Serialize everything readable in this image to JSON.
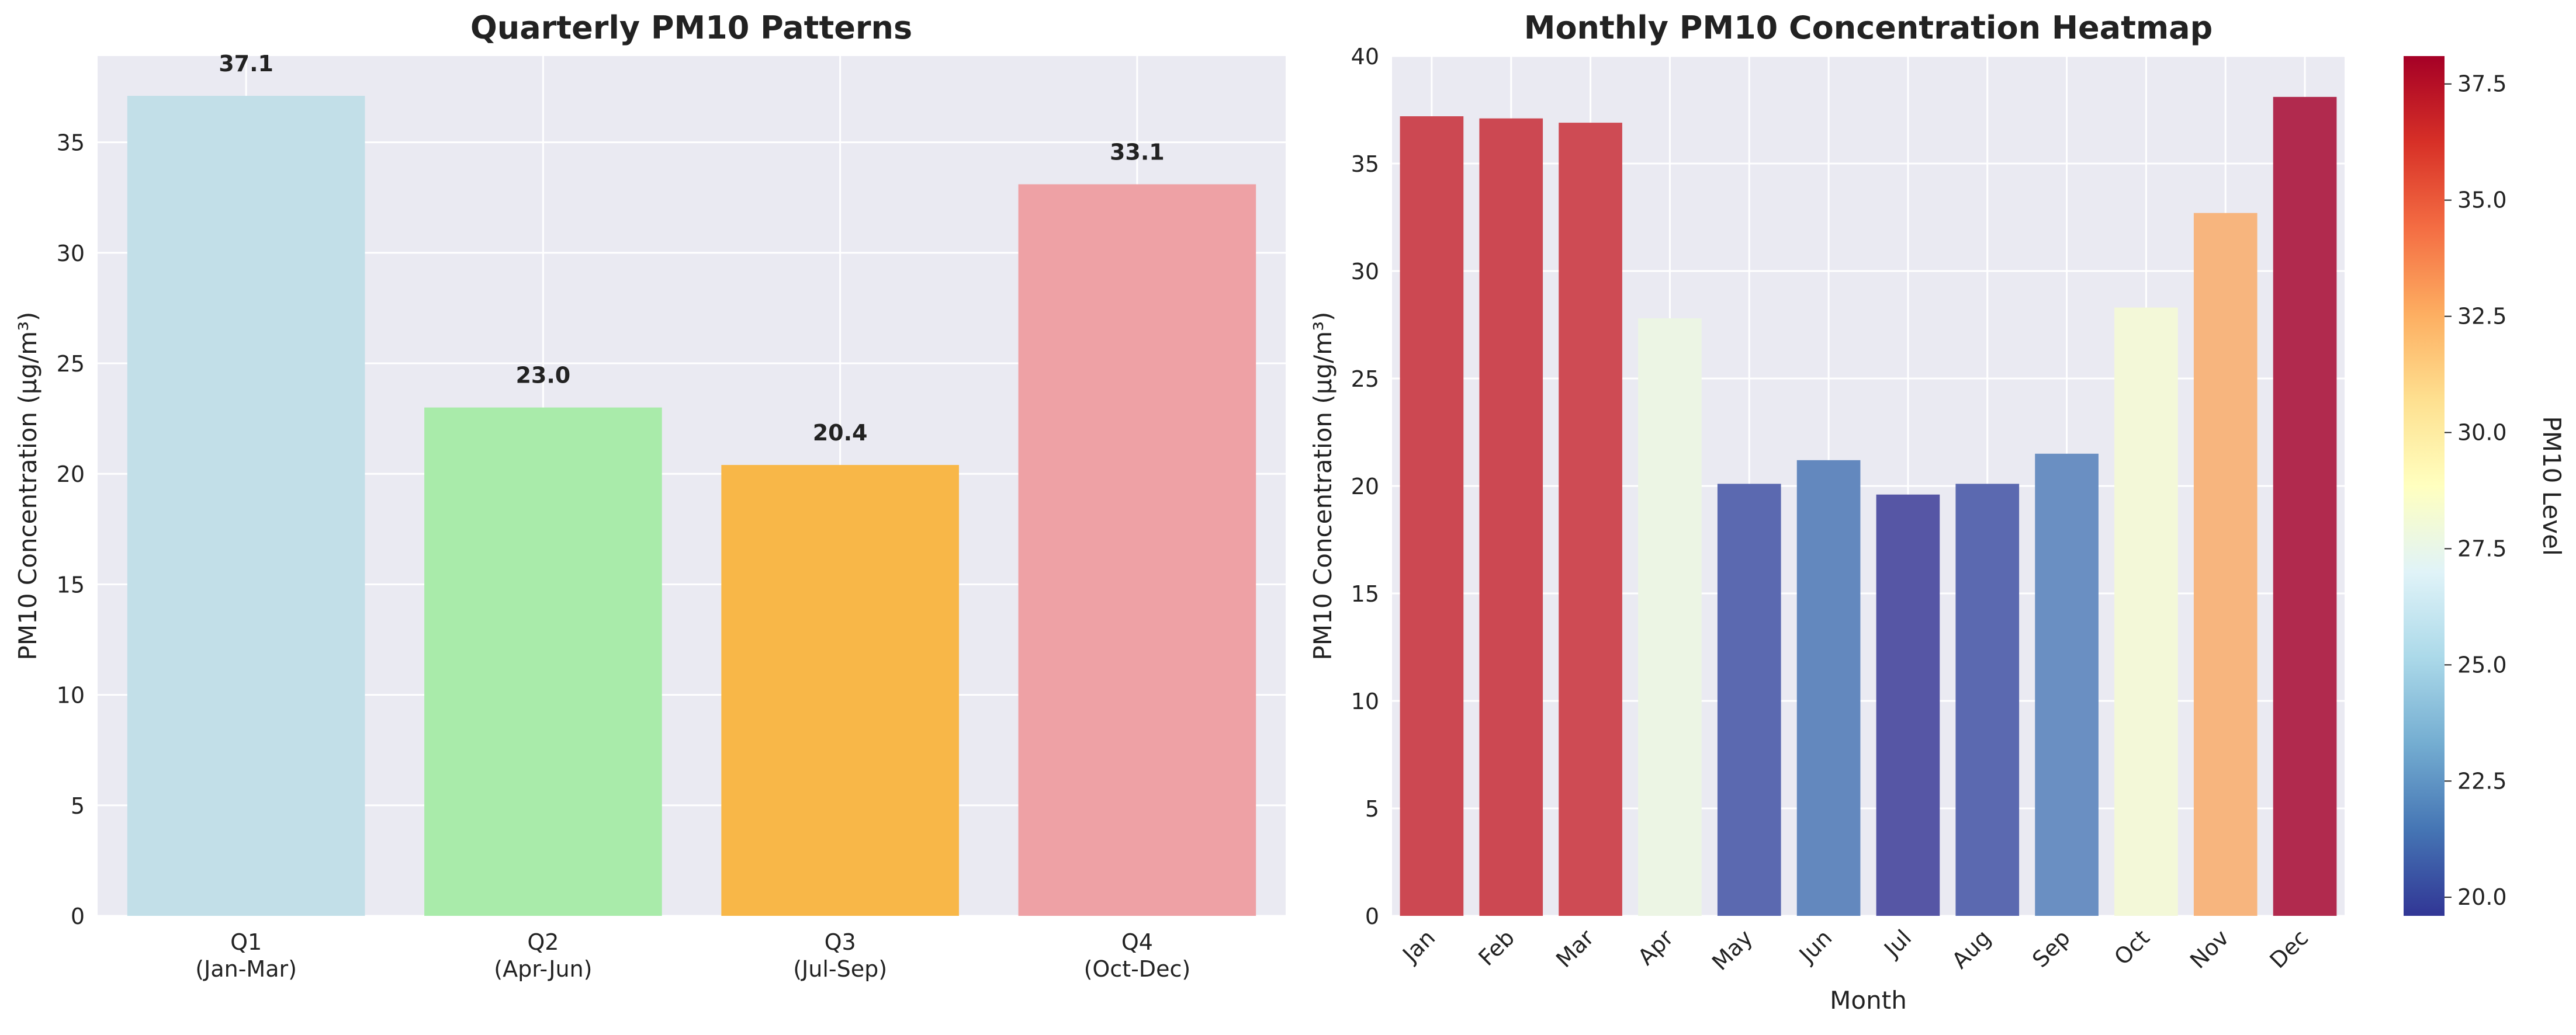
{
  "chart_data": [
    {
      "type": "bar",
      "title": "Quarterly PM10 Patterns",
      "xlabel": "",
      "ylabel": "PM10 Concentration (μg/m³)",
      "categories": [
        "Q1\n(Jan-Mar)",
        "Q2\n(Apr-Jun)",
        "Q3\n(Jul-Sep)",
        "Q4\n(Oct-Dec)"
      ],
      "values": [
        37.1,
        23.0,
        20.4,
        33.1
      ],
      "data_labels": [
        "37.1",
        "23.0",
        "20.4",
        "33.1"
      ],
      "colors": [
        "#c2dfe8",
        "#a9ebaa",
        "#f8b748",
        "#eea1a5"
      ],
      "ylim": [
        0,
        38.9
      ],
      "yticks": [
        0,
        5,
        10,
        15,
        20,
        25,
        30,
        35
      ],
      "grid": true
    },
    {
      "type": "bar",
      "title": "Monthly PM10 Concentration Heatmap",
      "xlabel": "Month",
      "ylabel": "PM10 Concentration (μg/m³)",
      "categories": [
        "Jan",
        "Feb",
        "Mar",
        "Apr",
        "May",
        "Jun",
        "Jul",
        "Aug",
        "Sep",
        "Oct",
        "Nov",
        "Dec"
      ],
      "values": [
        37.2,
        37.1,
        36.9,
        27.8,
        20.1,
        21.2,
        19.6,
        20.1,
        21.5,
        28.3,
        32.7,
        38.1
      ],
      "colors": [
        "#cc4852",
        "#cc4852",
        "#ce4b54",
        "#ecf5e4",
        "#5b69b0",
        "#6388be",
        "#5656a5",
        "#5b69b0",
        "#6a8fc2",
        "#f3f8d8",
        "#f7b57e",
        "#b12a4e"
      ],
      "ylim": [
        0,
        40
      ],
      "yticks": [
        0,
        5,
        10,
        15,
        20,
        25,
        30,
        35,
        40
      ],
      "grid": true,
      "colorbar": {
        "label": "PM10 Level",
        "ticks": [
          "20.0",
          "22.5",
          "25.0",
          "27.5",
          "30.0",
          "32.5",
          "35.0",
          "37.5"
        ],
        "tick_values": [
          20.0,
          22.5,
          25.0,
          27.5,
          30.0,
          32.5,
          35.0,
          37.5
        ],
        "range": [
          19.6,
          38.1
        ],
        "colormap": "RdYlBu_r"
      }
    }
  ]
}
